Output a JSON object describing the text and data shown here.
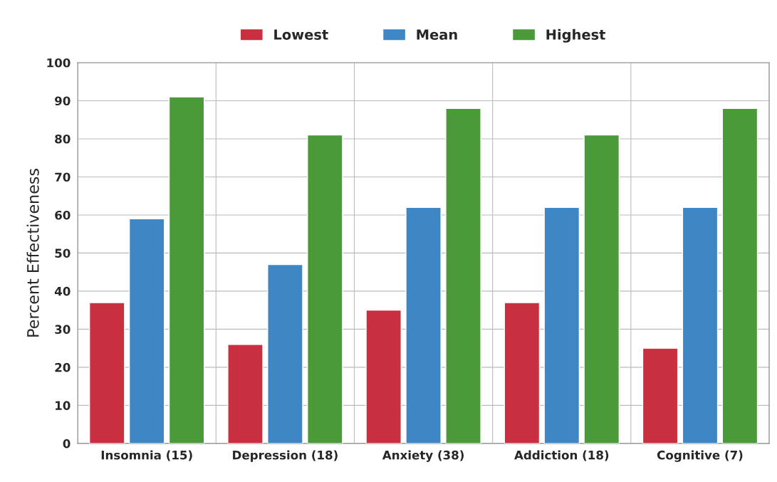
{
  "chart_data": {
    "type": "bar",
    "ylabel": "Percent Effectiveness",
    "categories": [
      "Insomnia (15)",
      "Depression (18)",
      "Anxiety (38)",
      "Addiction (18)",
      "Cognitive (7)"
    ],
    "series": [
      {
        "name": "Lowest",
        "color": "#c8303f",
        "values": [
          37,
          26,
          35,
          37,
          25
        ]
      },
      {
        "name": "Mean",
        "color": "#3f86c4",
        "values": [
          59,
          47,
          62,
          62,
          62
        ]
      },
      {
        "name": "Highest",
        "color": "#4a9a3a",
        "values": [
          91,
          81,
          88,
          81,
          88
        ]
      }
    ],
    "ylim": [
      0,
      100
    ],
    "yticks": [
      0,
      10,
      20,
      30,
      40,
      50,
      60,
      70,
      80,
      90,
      100
    ],
    "grid": true,
    "legend": "top"
  }
}
